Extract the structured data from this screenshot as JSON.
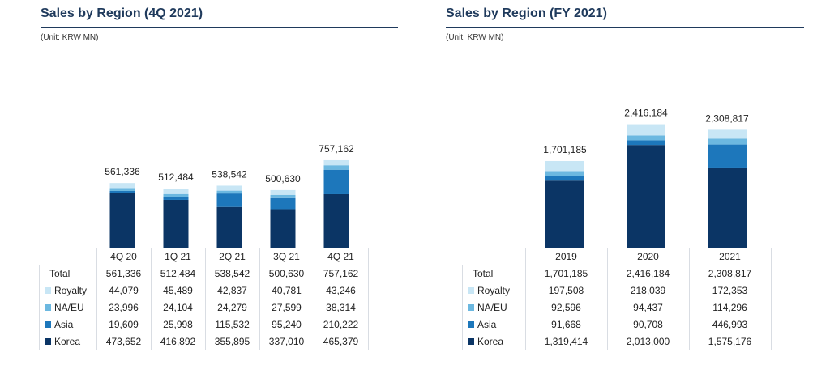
{
  "colors": {
    "korea": "#0b3565",
    "asia": "#1d77bb",
    "naeu": "#6cb8e0",
    "royalty": "#c8e6f5",
    "title": "#1f3a5c",
    "border": "#d9dde3"
  },
  "left_panel": {
    "title": "Sales by Region (4Q 2021)",
    "unit": "(Unit: KRW MN)"
  },
  "right_panel": {
    "title": "Sales by Region (FY 2021)",
    "unit": "(Unit: KRW MN)"
  },
  "chart_data": [
    {
      "type": "bar",
      "stacked": true,
      "title": "Sales by Region (4Q 2021)",
      "unit": "(Unit: KRW MN)",
      "categories": [
        "4Q 20",
        "1Q 21",
        "2Q 21",
        "3Q 21",
        "4Q 21"
      ],
      "totals_label": "Total",
      "totals": [
        "561,336",
        "512,484",
        "538,542",
        "500,630",
        "757,162"
      ],
      "series": [
        {
          "name": "Royalty",
          "values": [
            44079,
            45489,
            42837,
            40781,
            43246
          ],
          "labels": [
            "44,079",
            "45,489",
            "42,837",
            "40,781",
            "43,246"
          ]
        },
        {
          "name": "NA/EU",
          "values": [
            23996,
            24104,
            24279,
            27599,
            38314
          ],
          "labels": [
            "23,996",
            "24,104",
            "24,279",
            "27,599",
            "38,314"
          ]
        },
        {
          "name": "Asia",
          "values": [
            19609,
            25998,
            115532,
            95240,
            210222
          ],
          "labels": [
            "19,609",
            "25,998",
            "115,532",
            "95,240",
            "210,222"
          ]
        },
        {
          "name": "Korea",
          "values": [
            473652,
            416892,
            355895,
            337010,
            465379
          ],
          "labels": [
            "473,652",
            "416,892",
            "355,895",
            "337,010",
            "465,379"
          ]
        }
      ]
    },
    {
      "type": "bar",
      "stacked": true,
      "title": "Sales by Region (FY 2021)",
      "unit": "(Unit: KRW MN)",
      "categories": [
        "2019",
        "2020",
        "2021"
      ],
      "totals_label": "Total",
      "totals": [
        "1,701,185",
        "2,416,184",
        "2,308,817"
      ],
      "series": [
        {
          "name": "Royalty",
          "values": [
            197508,
            218039,
            172353
          ],
          "labels": [
            "197,508",
            "218,039",
            "172,353"
          ]
        },
        {
          "name": "NA/EU",
          "values": [
            92596,
            94437,
            114296
          ],
          "labels": [
            "92,596",
            "94,437",
            "114,296"
          ]
        },
        {
          "name": "Asia",
          "values": [
            91668,
            90708,
            446993
          ],
          "labels": [
            "91,668",
            "90,708",
            "446,993"
          ]
        },
        {
          "name": "Korea",
          "values": [
            1319414,
            2013000,
            1575176
          ],
          "labels": [
            "1,319,414",
            "2,013,000",
            "1,575,176"
          ]
        }
      ]
    }
  ]
}
